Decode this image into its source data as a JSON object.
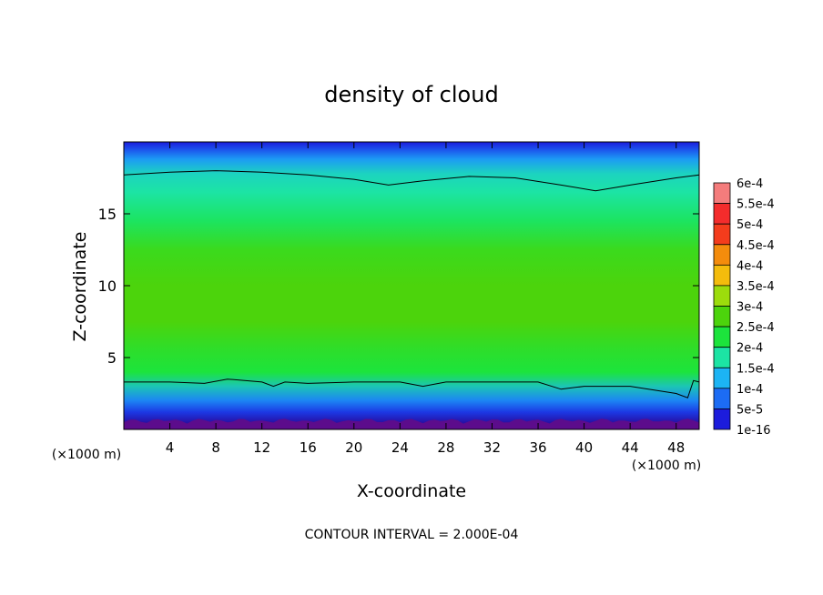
{
  "chart_data": {
    "type": "heatmap",
    "title": "density of cloud",
    "xlabel": "X-coordinate",
    "ylabel": "Z-coordinate",
    "x_unit_left": "(×1000 m)",
    "x_unit_right": "(×1000 m)",
    "footer": "CONTOUR INTERVAL = 2.000E-04",
    "xlim": [
      0,
      50
    ],
    "ylim": [
      0,
      20
    ],
    "xticks": [
      4,
      8,
      12,
      16,
      20,
      24,
      28,
      32,
      36,
      40,
      44,
      48
    ],
    "yticks": [
      5,
      10,
      15
    ],
    "contour_interval": 0.0002,
    "colorbar": {
      "labels": [
        "6e-4",
        "5.5e-4",
        "5e-4",
        "4.5e-4",
        "4e-4",
        "3.5e-4",
        "3e-4",
        "2.5e-4",
        "2e-4",
        "1.5e-4",
        "1e-4",
        "5e-5",
        "1e-16"
      ],
      "colors": [
        "#f47c7c",
        "#f42c2c",
        "#f43c1c",
        "#f48c0c",
        "#f4bc0c",
        "#9cdc0c",
        "#4cd40c",
        "#1ce43c",
        "#1ce4a4",
        "#1cb4f4",
        "#1c6cf4",
        "#1c1cdc",
        "#2c0c8c",
        "#5c0c8c"
      ]
    },
    "z_profile": [
      {
        "z": 0.0,
        "value": 1e-05
      },
      {
        "z": 0.5,
        "value": 3e-05
      },
      {
        "z": 1.2,
        "value": 8e-05
      },
      {
        "z": 2.0,
        "value": 0.00013
      },
      {
        "z": 3.0,
        "value": 0.00019
      },
      {
        "z": 4.0,
        "value": 0.00025
      },
      {
        "z": 5.5,
        "value": 0.00029
      },
      {
        "z": 7.5,
        "value": 0.00032
      },
      {
        "z": 10.0,
        "value": 0.00033
      },
      {
        "z": 12.5,
        "value": 0.00032
      },
      {
        "z": 14.5,
        "value": 0.00029
      },
      {
        "z": 16.5,
        "value": 0.00024
      },
      {
        "z": 17.8,
        "value": 0.0002
      },
      {
        "z": 18.8,
        "value": 0.00015
      },
      {
        "z": 19.5,
        "value": 0.0001
      },
      {
        "z": 20.0,
        "value": 7e-05
      }
    ],
    "contours": [
      {
        "level": 0.0002,
        "points": [
          [
            0,
            17.7
          ],
          [
            4,
            17.9
          ],
          [
            8,
            18.0
          ],
          [
            12,
            17.9
          ],
          [
            16,
            17.7
          ],
          [
            20,
            17.4
          ],
          [
            23,
            17.0
          ],
          [
            26,
            17.3
          ],
          [
            30,
            17.6
          ],
          [
            34,
            17.5
          ],
          [
            38,
            17.0
          ],
          [
            41,
            16.6
          ],
          [
            44,
            17.0
          ],
          [
            48,
            17.5
          ],
          [
            50,
            17.7
          ]
        ]
      },
      {
        "level": 0.0002,
        "points": [
          [
            0,
            3.3
          ],
          [
            4,
            3.3
          ],
          [
            7,
            3.2
          ],
          [
            9,
            3.5
          ],
          [
            12,
            3.3
          ],
          [
            13,
            3.0
          ],
          [
            14,
            3.3
          ],
          [
            16,
            3.2
          ],
          [
            20,
            3.3
          ],
          [
            24,
            3.3
          ],
          [
            26,
            3.0
          ],
          [
            28,
            3.3
          ],
          [
            32,
            3.3
          ],
          [
            36,
            3.3
          ],
          [
            38,
            2.8
          ],
          [
            40,
            3.0
          ],
          [
            44,
            3.0
          ],
          [
            48,
            2.5
          ],
          [
            49,
            2.2
          ],
          [
            49.5,
            3.4
          ],
          [
            50,
            3.3
          ]
        ]
      }
    ]
  }
}
